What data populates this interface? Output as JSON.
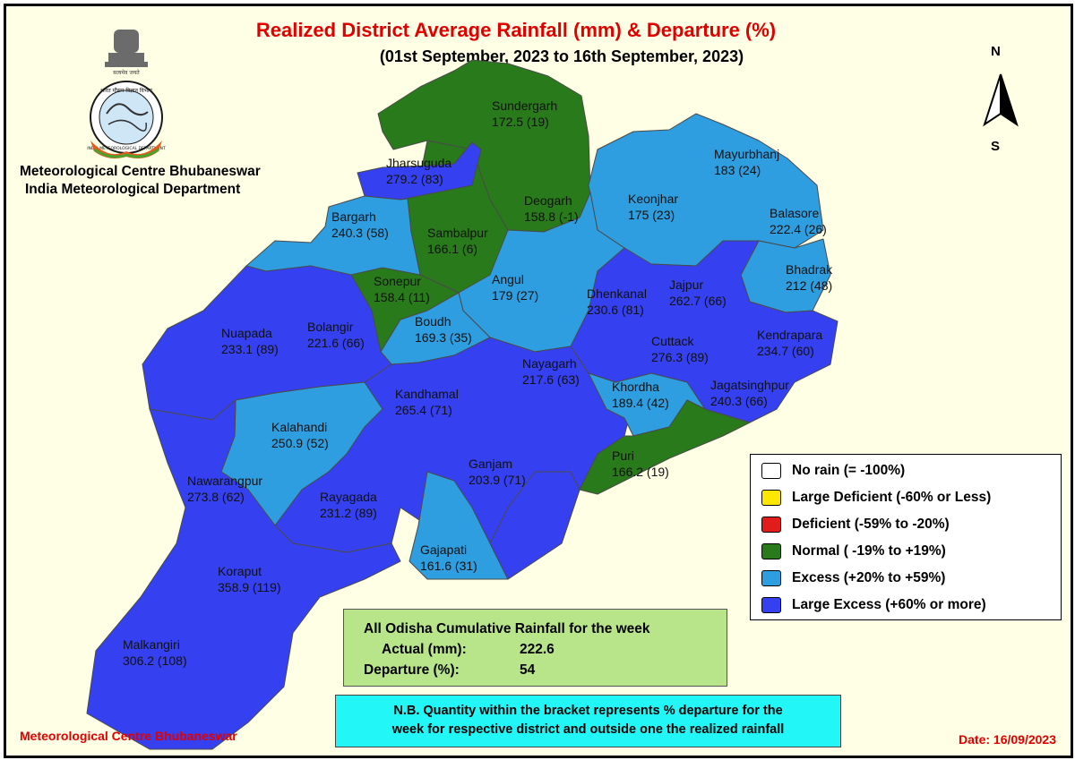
{
  "title": "Realized District Average Rainfall (mm) & Departure (%)",
  "subtitle": "(01st September, 2023 to 16th September, 2023)",
  "organization": {
    "line1": "Meteorological Centre Bhubaneswar",
    "line2": "India Meteorological Department"
  },
  "emblem_text": {
    "motto": "सत्यमेव जयते",
    "ring": "भारत मौसम विज्ञान विभाग",
    "ring_en": "INDIA METEOROLOGICAL DEPARTMENT"
  },
  "compass": {
    "north": "N",
    "south": "S"
  },
  "colors": {
    "no_rain": "#ffffff",
    "large_deficient": "#ffe600",
    "deficient": "#e21b1b",
    "normal": "#287a1a",
    "excess": "#2e9ee0",
    "large_excess": "#3541f0"
  },
  "legend": [
    {
      "label": "No rain (= -100%)",
      "color": "#ffffff"
    },
    {
      "label": "Large Deficient (-60% or Less)",
      "color": "#ffe600"
    },
    {
      "label": "Deficient (-59% to -20%)",
      "color": "#e21b1b"
    },
    {
      "label": "Normal ( -19% to +19%)",
      "color": "#287a1a"
    },
    {
      "label": "Excess (+20% to +59%)",
      "color": "#2e9ee0"
    },
    {
      "label": "Large Excess (+60% or more)",
      "color": "#3541f0"
    }
  ],
  "districts": [
    {
      "name": "Sundergarh",
      "value": "172.5 (19)",
      "category": "normal"
    },
    {
      "name": "Jharsuguda",
      "value": "279.2 (83)",
      "category": "large_excess"
    },
    {
      "name": "Deogarh",
      "value": "158.8 (-1)",
      "category": "normal"
    },
    {
      "name": "Sambalpur",
      "value": "166.1 (6)",
      "category": "normal"
    },
    {
      "name": "Bargarh",
      "value": "240.3 (58)",
      "category": "excess"
    },
    {
      "name": "Mayurbhanj",
      "value": "183 (24)",
      "category": "excess"
    },
    {
      "name": "Keonjhar",
      "value": "175 (23)",
      "category": "excess"
    },
    {
      "name": "Balasore",
      "value": "222.4 (26)",
      "category": "excess"
    },
    {
      "name": "Bhadrak",
      "value": "212 (48)",
      "category": "excess"
    },
    {
      "name": "Sonepur",
      "value": "158.4 (11)",
      "category": "normal"
    },
    {
      "name": "Angul",
      "value": "179 (27)",
      "category": "excess"
    },
    {
      "name": "Dhenkanal",
      "value": "230.6 (81)",
      "category": "large_excess"
    },
    {
      "name": "Jajpur",
      "value": "262.7 (66)",
      "category": "large_excess"
    },
    {
      "name": "Kendrapara",
      "value": "234.7 (60)",
      "category": "large_excess"
    },
    {
      "name": "Nuapada",
      "value": "233.1 (89)",
      "category": "large_excess"
    },
    {
      "name": "Bolangir",
      "value": "221.6 (66)",
      "category": "large_excess"
    },
    {
      "name": "Boudh",
      "value": "169.3 (35)",
      "category": "excess"
    },
    {
      "name": "Cuttack",
      "value": "276.3 (89)",
      "category": "large_excess"
    },
    {
      "name": "Nayagarh",
      "value": "217.6 (63)",
      "category": "large_excess"
    },
    {
      "name": "Jagatsinghpur",
      "value": "240.3 (66)",
      "category": "large_excess"
    },
    {
      "name": "Khordha",
      "value": "189.4 (42)",
      "category": "excess"
    },
    {
      "name": "Kandhamal",
      "value": "265.4 (71)",
      "category": "large_excess"
    },
    {
      "name": "Kalahandi",
      "value": "250.9 (52)",
      "category": "excess"
    },
    {
      "name": "Puri",
      "value": "166.2 (19)",
      "category": "normal"
    },
    {
      "name": "Ganjam",
      "value": "203.9 (71)",
      "category": "large_excess"
    },
    {
      "name": "Nawarangpur",
      "value": "273.8 (62)",
      "category": "large_excess"
    },
    {
      "name": "Rayagada",
      "value": "231.2 (89)",
      "category": "large_excess"
    },
    {
      "name": "Gajapati",
      "value": "161.6 (31)",
      "category": "excess"
    },
    {
      "name": "Koraput",
      "value": "358.9 (119)",
      "category": "large_excess"
    },
    {
      "name": "Malkangiri",
      "value": "306.2 (108)",
      "category": "large_excess"
    }
  ],
  "summary": {
    "title": "All Odisha Cumulative Rainfall for the week",
    "actual_label": "Actual (mm):",
    "actual_value": "222.6",
    "departure_label": "Departure (%):",
    "departure_value": "54"
  },
  "note": {
    "line1": "N.B. Quantity within the bracket represents % departure for the",
    "line2": "week for respective district and outside one the realized rainfall"
  },
  "footer": {
    "left": "Meteorological Centre Bhubaneswar",
    "right": "Date: 16/09/2023"
  }
}
